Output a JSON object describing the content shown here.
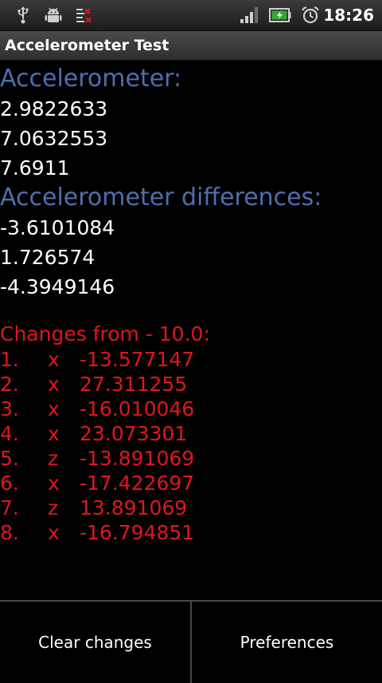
{
  "status_bar": {
    "time": "18:26",
    "icons": [
      "usb-icon",
      "android-debug-icon",
      "notification-icon",
      "signal-icon",
      "battery-icon",
      "alarm-icon"
    ]
  },
  "app": {
    "title": "Accelerometer Test"
  },
  "accelerometer": {
    "label": "Accelerometer:",
    "values": [
      "2.9822633",
      "7.0632553",
      "7.6911"
    ]
  },
  "differences": {
    "label": "Accelerometer differences:",
    "values": [
      "-3.6101084",
      "1.726574",
      "-4.3949146"
    ]
  },
  "changes": {
    "label": "Changes from - 10.0:",
    "rows": [
      {
        "index": "1.",
        "axis": "x",
        "value": "-13.577147"
      },
      {
        "index": "2.",
        "axis": "x",
        "value": "27.311255"
      },
      {
        "index": "3.",
        "axis": "x",
        "value": "-16.010046"
      },
      {
        "index": "4.",
        "axis": "x",
        "value": "23.073301"
      },
      {
        "index": "5.",
        "axis": "z",
        "value": "-13.891069"
      },
      {
        "index": "6.",
        "axis": "x",
        "value": "-17.422697"
      },
      {
        "index": "7.",
        "axis": "z",
        "value": "13.891069"
      },
      {
        "index": "8.",
        "axis": "x",
        "value": "-16.794851"
      }
    ]
  },
  "buttons": {
    "clear_label": "Clear changes",
    "prefs_label": "Preferences"
  },
  "colors": {
    "heading": "#4d6fae",
    "changes": "#e0161c"
  }
}
